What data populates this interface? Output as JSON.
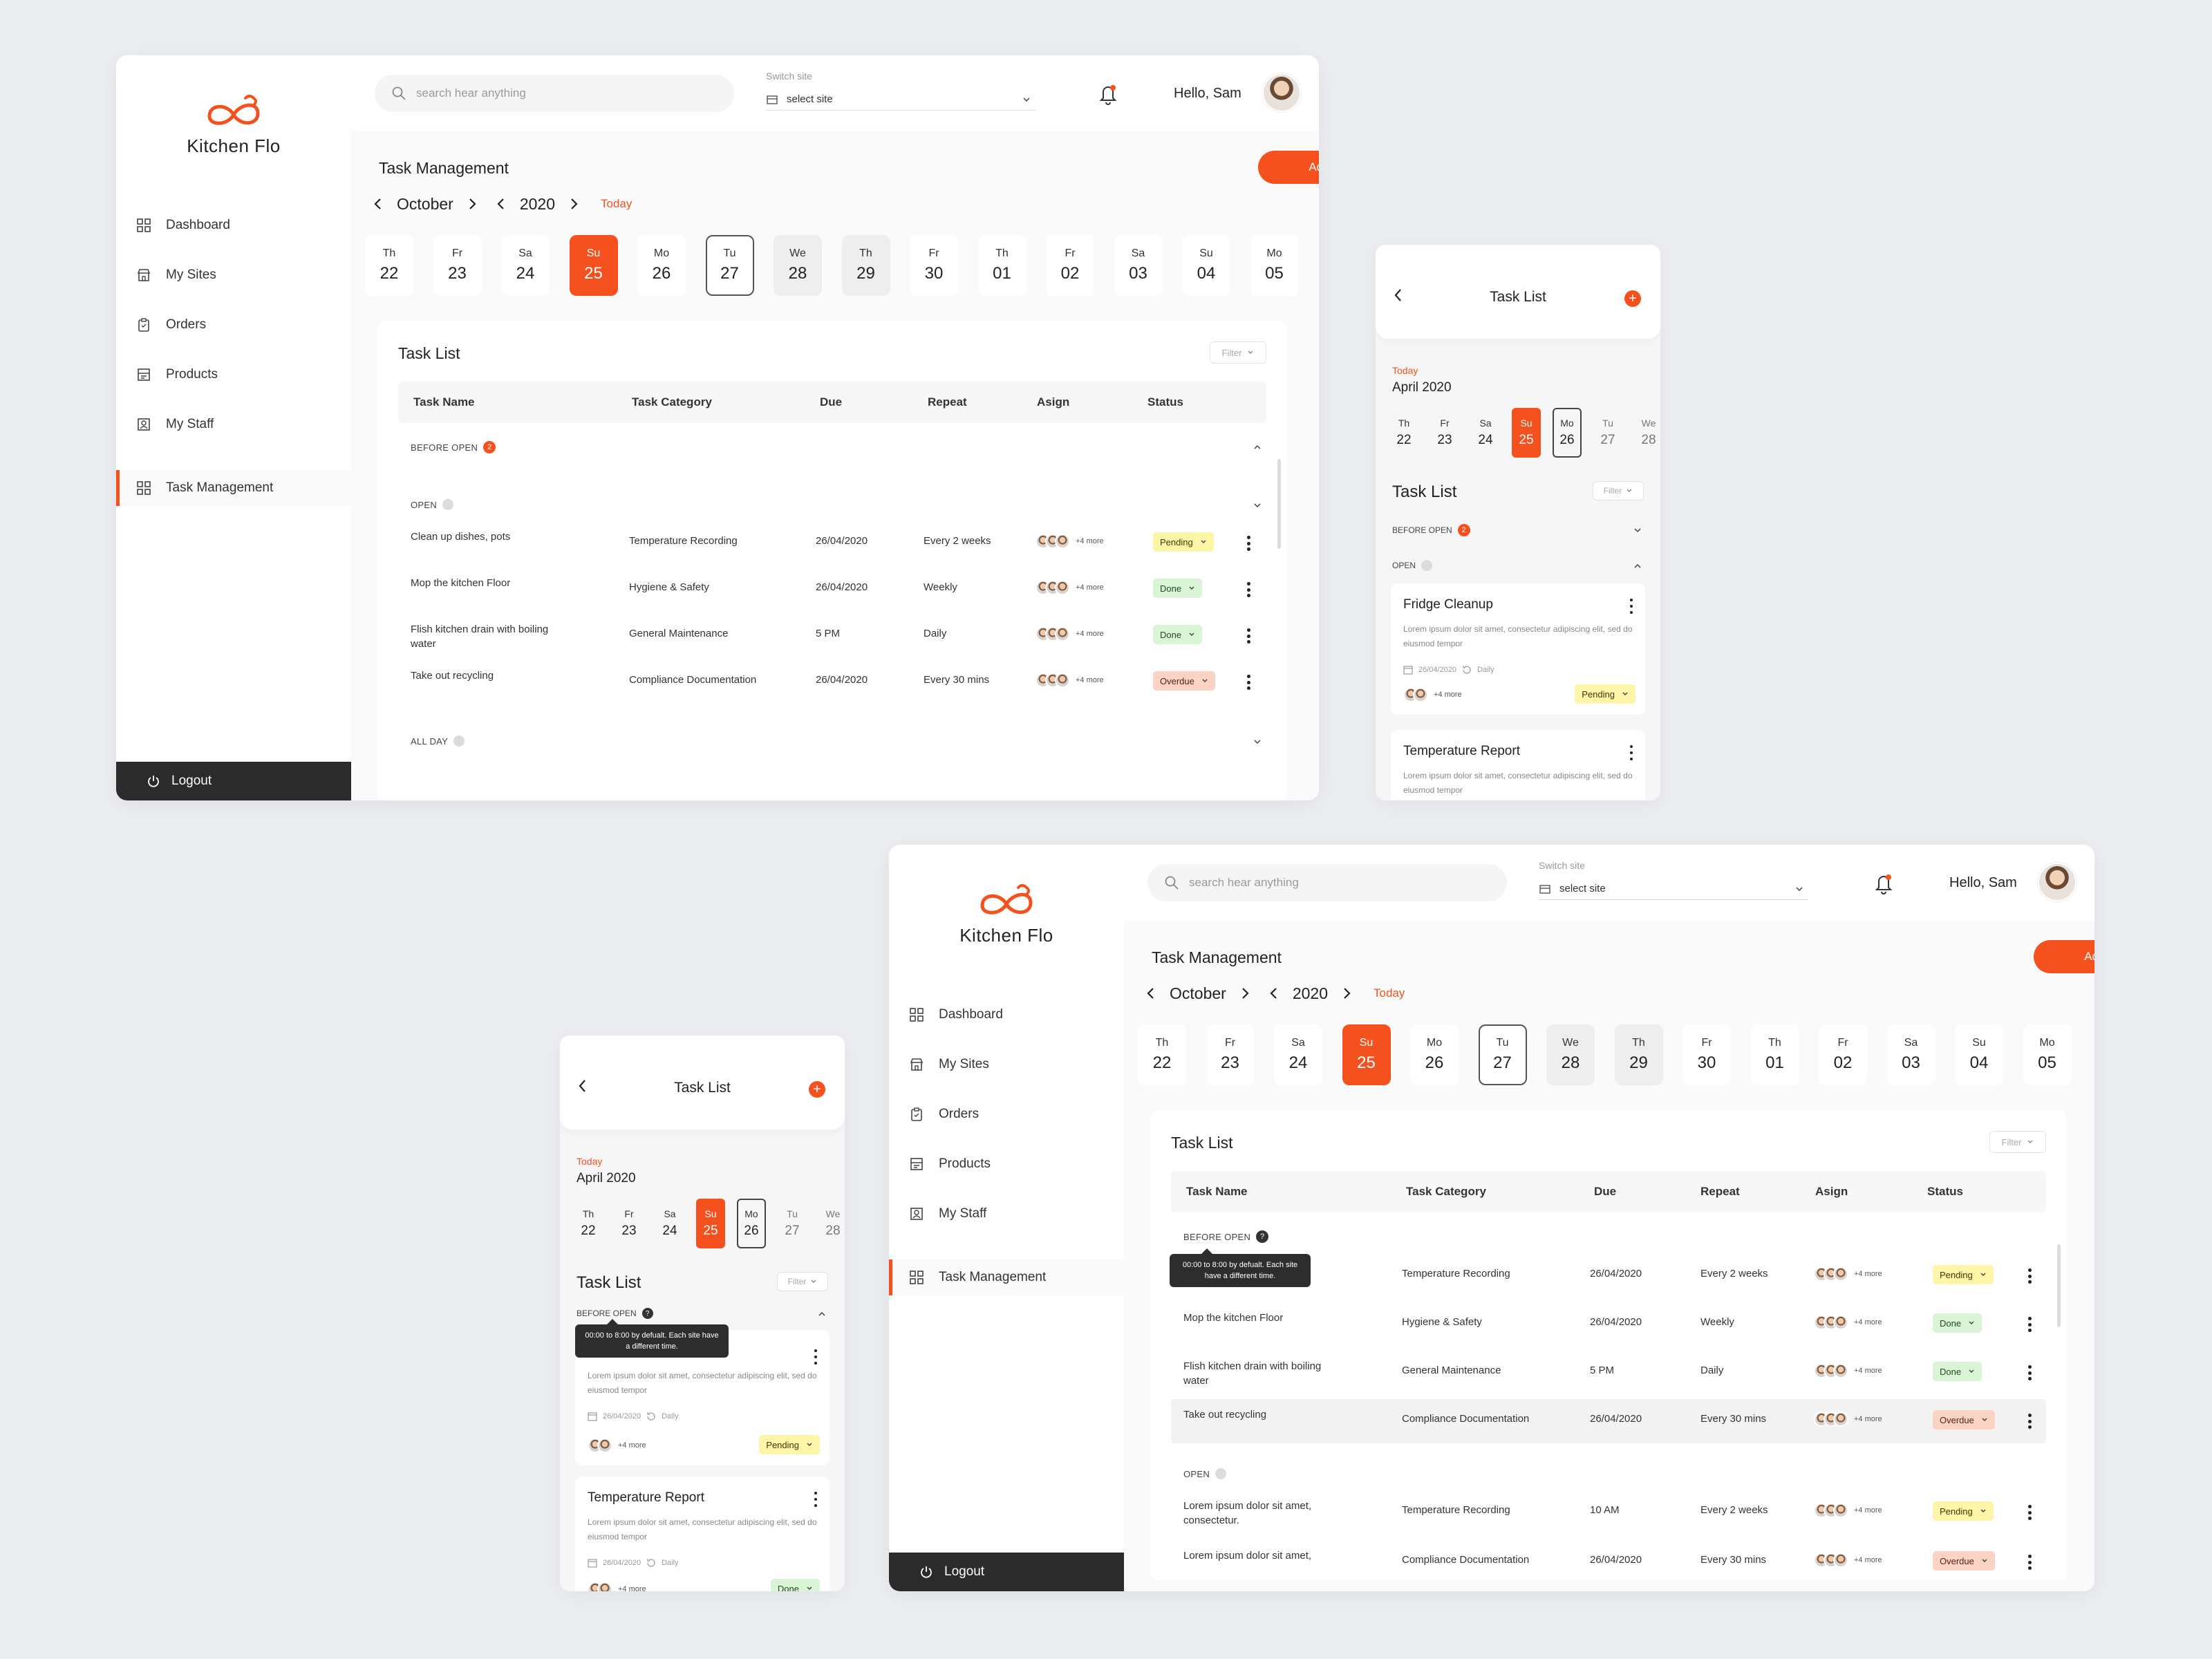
{
  "colors": {
    "accent": "#f4511e",
    "pending": "#fdf5a8",
    "done": "#d9f5d6",
    "overdue": "#fbd3c4",
    "logout_bg": "#2b2b2b"
  },
  "app": {
    "name": "Kitchen Flo",
    "logo_icon": "infinity-chef-logo",
    "nav": [
      {
        "label": "Dashboard",
        "icon": "grid-icon"
      },
      {
        "label": "My Sites",
        "icon": "store-icon"
      },
      {
        "label": "Orders",
        "icon": "clipboard-icon"
      },
      {
        "label": "Products",
        "icon": "products-icon"
      },
      {
        "label": "My Staff",
        "icon": "staff-icon"
      },
      {
        "label": "Task Management",
        "icon": "grid-icon",
        "active": true
      }
    ],
    "logout_label": "Logout",
    "search_placeholder": "search hear anything",
    "switch_label": "Switch site",
    "switch_value": "select site",
    "greeting": "Hello, Sam"
  },
  "task_page": {
    "title": "Task Management",
    "add_button": "Add Task",
    "month": "October",
    "year": "2020",
    "today_label": "Today",
    "days": [
      {
        "dn": "Th",
        "dd": "22"
      },
      {
        "dn": "Fr",
        "dd": "23"
      },
      {
        "dn": "Sa",
        "dd": "24"
      },
      {
        "dn": "Su",
        "dd": "25",
        "state": "selected"
      },
      {
        "dn": "Mo",
        "dd": "26"
      },
      {
        "dn": "Tu",
        "dd": "27",
        "state": "outlined"
      },
      {
        "dn": "We",
        "dd": "28",
        "state": "grey"
      },
      {
        "dn": "Th",
        "dd": "29",
        "state": "grey"
      },
      {
        "dn": "Fr",
        "dd": "30"
      },
      {
        "dn": "Th",
        "dd": "01"
      },
      {
        "dn": "Fr",
        "dd": "02"
      },
      {
        "dn": "Sa",
        "dd": "03"
      },
      {
        "dn": "Su",
        "dd": "04"
      },
      {
        "dn": "Mo",
        "dd": "05"
      }
    ],
    "list_title": "Task List",
    "filter_label": "Filter",
    "columns": [
      "Task Name",
      "Task Category",
      "Due",
      "Repeat",
      "Asign",
      "Status"
    ],
    "sections": {
      "before_open": "BEFORE OPEN",
      "before_open_count": "2",
      "open": "OPEN",
      "all_day": "ALL DAY"
    },
    "more_label": "+4 more",
    "tooltip": "00:00 to 8:00 by defualt. Each site have a different time.",
    "rows_top": [
      {
        "name": "Clean up dishes, pots",
        "category": "Temperature Recording",
        "due": "26/04/2020",
        "repeat": "Every 2 weeks",
        "status": "Pending"
      },
      {
        "name": "Mop the kitchen Floor",
        "category": "Hygiene & Safety",
        "due": "26/04/2020",
        "repeat": "Weekly",
        "status": "Done"
      },
      {
        "name": "Flish kitchen drain with boiling water",
        "category": "General Maintenance",
        "due": "5 PM",
        "repeat": "Daily",
        "status": "Done"
      },
      {
        "name": "Take out recycling",
        "category": "Compliance Documentation",
        "due": "26/04/2020",
        "repeat": "Every 30 mins",
        "status": "Overdue"
      }
    ],
    "rows_bottom_before": [
      {
        "name": "Clean up dishes, pots",
        "category": "Temperature Recording",
        "due": "26/04/2020",
        "repeat": "Every 2 weeks",
        "status": "Pending"
      },
      {
        "name": "Mop the kitchen Floor",
        "category": "Hygiene & Safety",
        "due": "26/04/2020",
        "repeat": "Weekly",
        "status": "Done"
      },
      {
        "name": "Flish kitchen drain with boiling water",
        "category": "General Maintenance",
        "due": "5 PM",
        "repeat": "Daily",
        "status": "Done"
      },
      {
        "name": "Take out recycling",
        "category": "Compliance Documentation",
        "due": "26/04/2020",
        "repeat": "Every 30 mins",
        "status": "Overdue"
      }
    ],
    "rows_bottom_open": [
      {
        "name": "Lorem ipsum dolor sit amet, consectetur.",
        "category": "Temperature Recording",
        "due": "10 AM",
        "repeat": "Every 2 weeks",
        "status": "Pending"
      },
      {
        "name": "Lorem ipsum dolor sit amet,",
        "category": "Compliance Documentation",
        "due": "26/04/2020",
        "repeat": "Every 30 mins",
        "status": "Overdue"
      }
    ]
  },
  "mobile": {
    "title": "Task List",
    "today_label": "Today",
    "month": "April 2020",
    "days": [
      {
        "dn": "Th",
        "dd": "22"
      },
      {
        "dn": "Fr",
        "dd": "23"
      },
      {
        "dn": "Sa",
        "dd": "24"
      },
      {
        "dn": "Su",
        "dd": "25",
        "state": "selected"
      },
      {
        "dn": "Mo",
        "dd": "26",
        "state": "outlined"
      },
      {
        "dn": "Tu",
        "dd": "27",
        "state": "grey"
      },
      {
        "dn": "We",
        "dd": "28",
        "state": "grey"
      }
    ],
    "list_title": "Task List",
    "filter_label": "Filter",
    "before_open": "BEFORE OPEN",
    "before_open_count": "2",
    "open": "OPEN",
    "desc": "Lorem ipsum dolor sit amet, consectetur  adipiscing elit, sed do eiusmod tempor",
    "date": "26/04/2020",
    "repeat": "Daily",
    "more_label": "+4 more",
    "tooltip": "00:00 to 8:00 by defualt. Each site have a different time.",
    "card1_title": "Fridge Cleanup",
    "card2_title": "Temperature Report",
    "status_pending": "Pending",
    "status_done": "Done"
  }
}
